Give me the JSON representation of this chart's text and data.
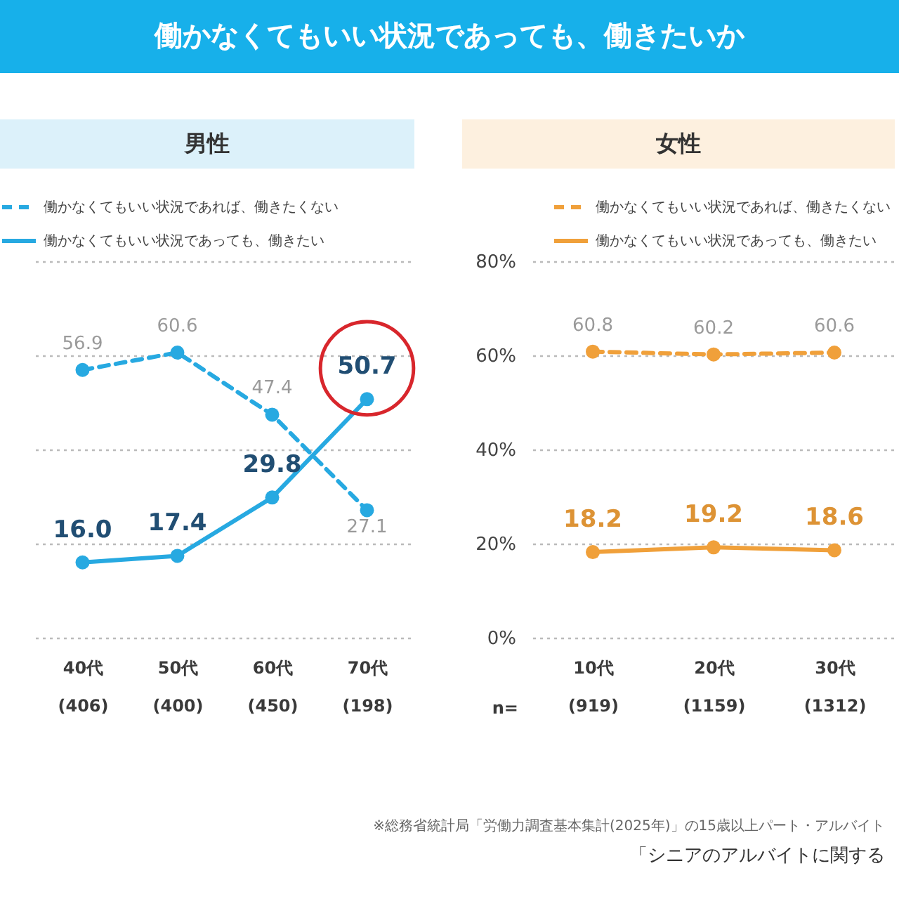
{
  "chart_data": [
    {
      "type": "other",
      "title": "働かなくてもいい状況であっても、働きたいか"
    },
    {
      "type": "line",
      "title": "男性",
      "categories": [
        "40代\n(406)",
        "50代\n(400)",
        "60代\n(450)",
        "70代\n(198)"
      ],
      "series": [
        {
          "name": "働かなくてもいい状況であれば、働きたくない",
          "color": "#27a9e1",
          "line_style": "dashed",
          "values": [
            56.9,
            60.6,
            47.4,
            27.1
          ],
          "value_labels": [
            "56.9",
            "60.6",
            "47.4",
            "27.1"
          ]
        },
        {
          "name": "働かなくてもいい状況であっても、働きたい",
          "color": "#27a9e1",
          "line_style": "solid",
          "values": [
            16.0,
            17.4,
            29.8,
            50.7
          ],
          "value_labels": [
            "16.0",
            "17.4",
            "29.8",
            null
          ]
        }
      ],
      "ylim": [
        0,
        80
      ],
      "yticks": [
        0,
        20,
        40,
        60,
        80
      ],
      "tick_labels": "x",
      "grid": "y",
      "legend": "top left",
      "marker": "circle",
      "annotations": [
        {
          "text": "50.7",
          "x": "70代\n(198)",
          "y": 50.7
        }
      ]
    },
    {
      "type": "line",
      "title": "女性",
      "categories": [
        "10代\n(919)",
        "20代\n(1159)",
        "30代\n(1312)"
      ],
      "series": [
        {
          "name": "働かなくてもいい状況であれば、働きたくない",
          "color": "#f0a03a",
          "line_style": "dashed",
          "values": [
            60.8,
            60.2,
            60.6
          ]
        },
        {
          "name": "働かなくてもいい状況であっても、働きたい",
          "color": "#f0a03a",
          "line_style": "solid",
          "values": [
            18.2,
            19.2,
            18.6
          ]
        }
      ],
      "ylim": [
        0,
        80
      ],
      "yticks": [
        {
          "value": 0,
          "label": "0%"
        },
        {
          "value": 20,
          "label": "20%"
        },
        {
          "value": 40,
          "label": "40%"
        },
        {
          "value": 60,
          "label": "60%"
        },
        {
          "value": 80,
          "label": "80%"
        }
      ],
      "grid": "y",
      "legend": "top right",
      "marker": "circle",
      "data_labels": true,
      "annotations": [
        "n="
      ]
    },
    {
      "type": "other",
      "annotations": [
        "※総務省統計局「労働力調査基本集計(2025年)」の15歳以上パート・アルバイト",
        "「シニアのアルバイトに関する"
      ]
    }
  ]
}
